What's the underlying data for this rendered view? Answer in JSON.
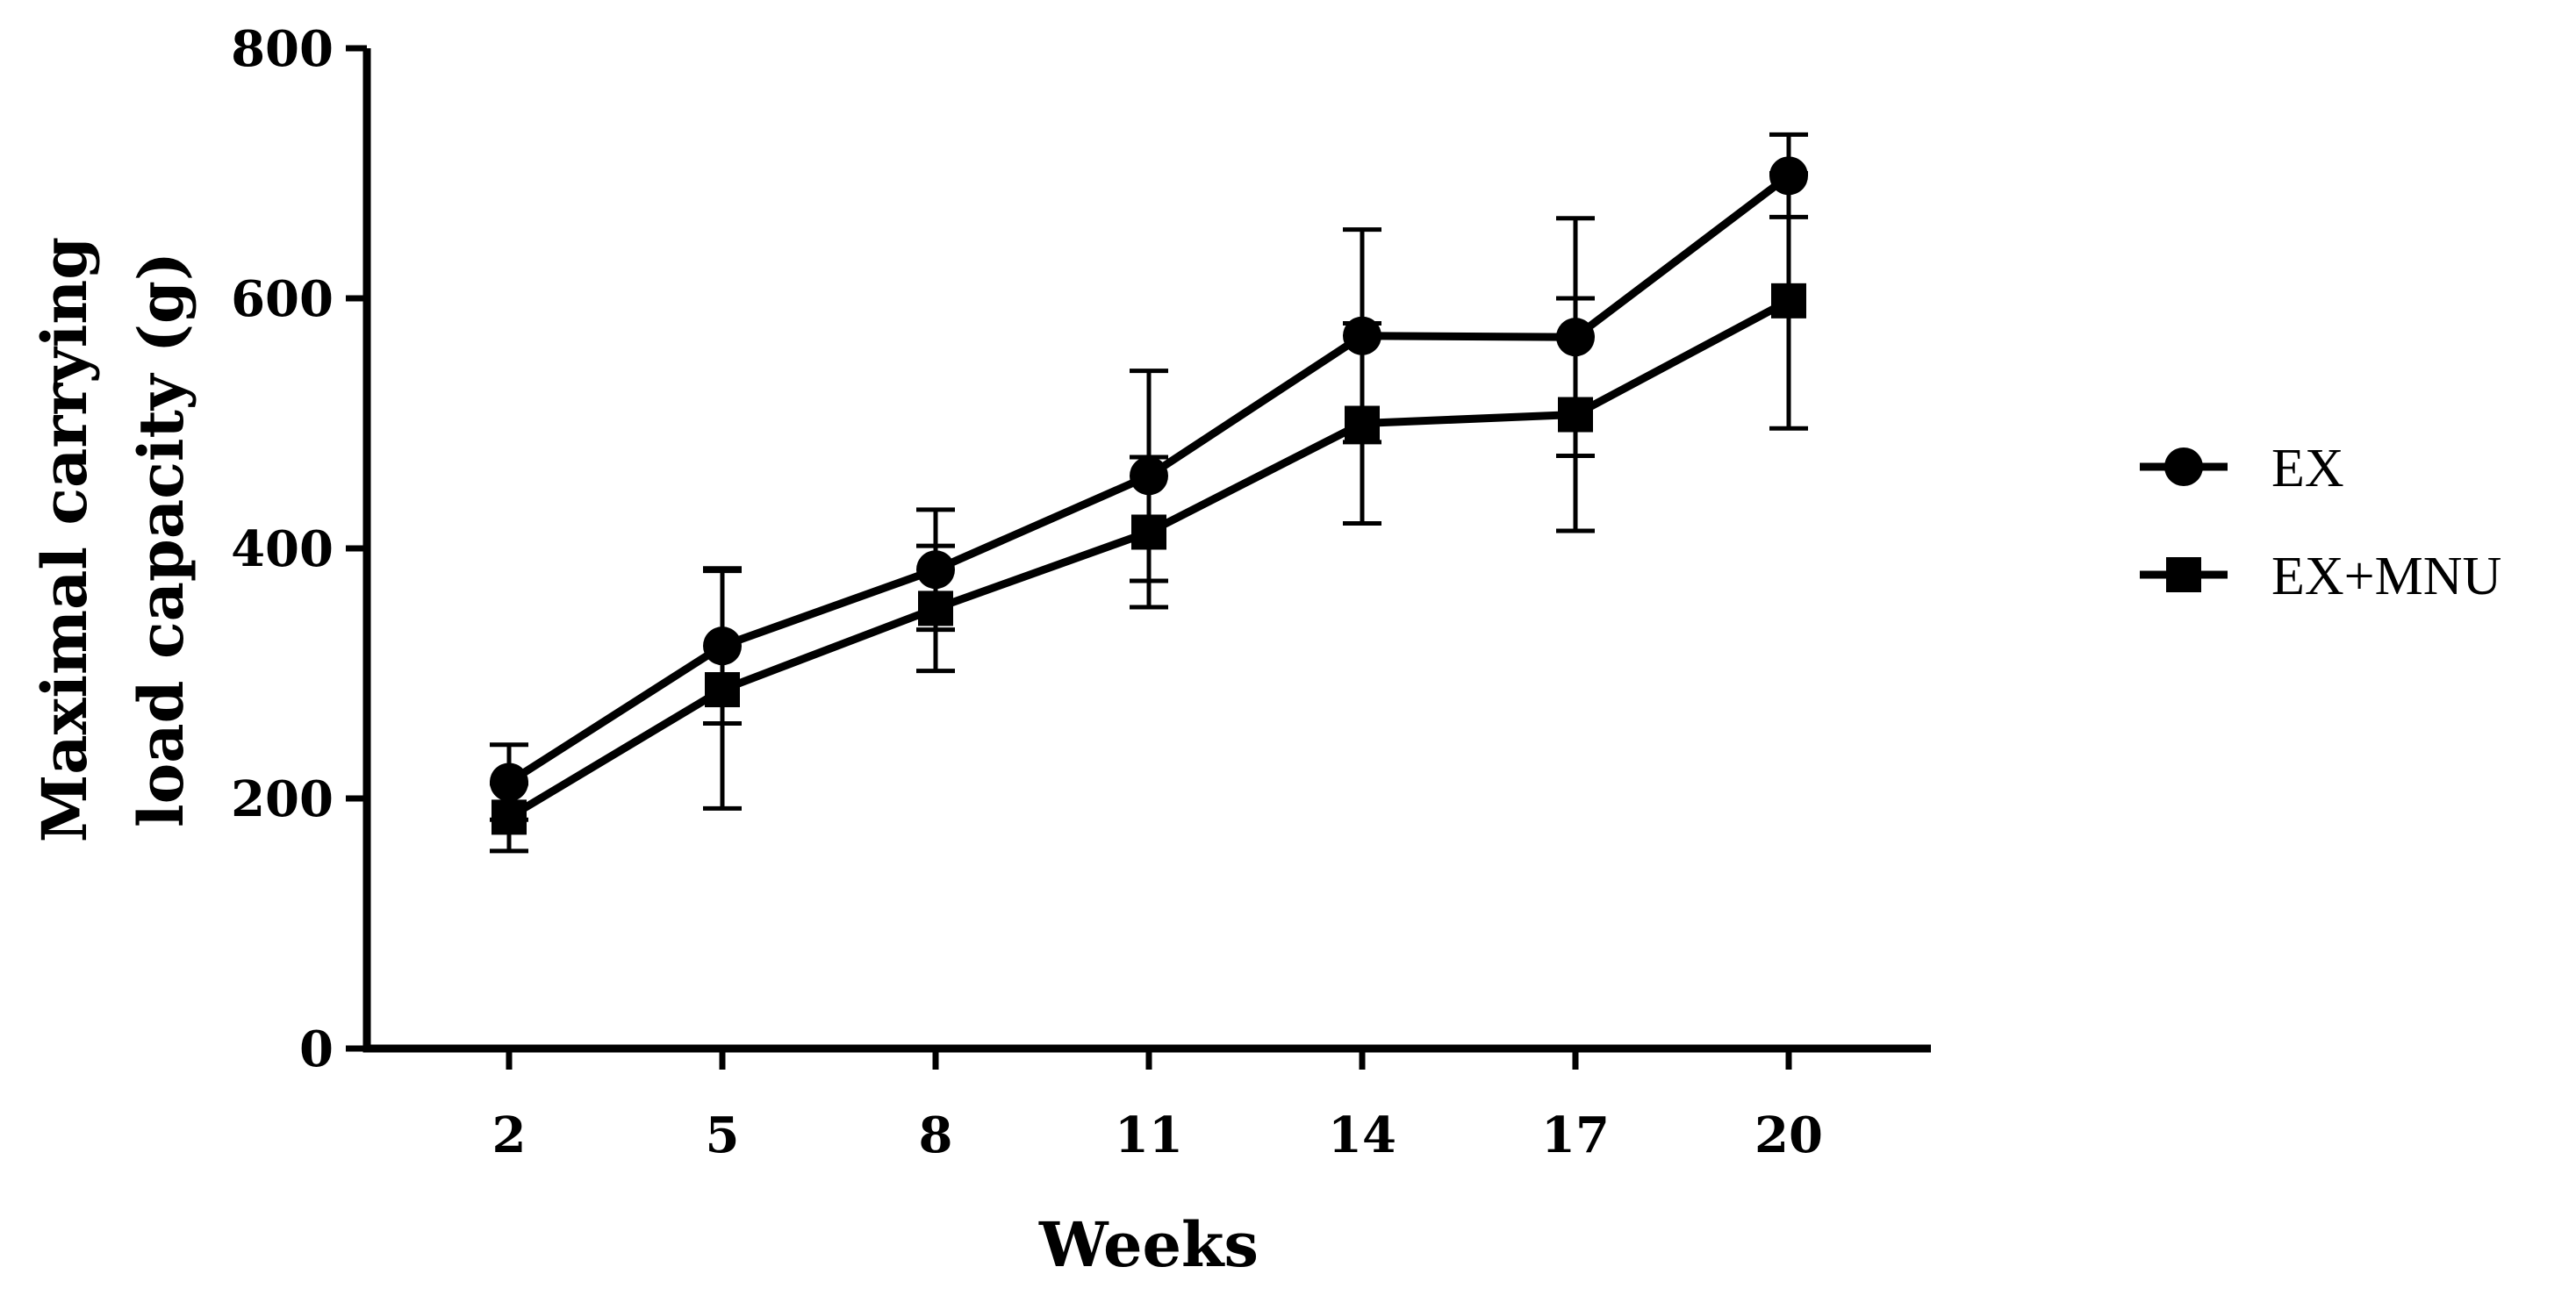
{
  "chart_data": {
    "type": "line",
    "title": "",
    "xlabel": "Weeks",
    "ylabel_lines": [
      "Maximal carrying",
      "load capacity (g)"
    ],
    "x": [
      2,
      5,
      8,
      11,
      14,
      17,
      20
    ],
    "x_tick_labels": [
      "2",
      "5",
      "8",
      "11",
      "14",
      "17",
      "20"
    ],
    "xlim": [
      0,
      22
    ],
    "ylim": [
      0,
      800
    ],
    "y_ticks": [
      0,
      200,
      400,
      600,
      800
    ],
    "y_tick_labels": [
      "0",
      "200",
      "400",
      "600",
      "800"
    ],
    "grid": false,
    "legend_position": "right",
    "series": [
      {
        "name": "EX",
        "marker": "circle",
        "values": [
          213,
          322,
          383,
          458,
          570,
          569,
          698
        ],
        "error": [
          30,
          62,
          48,
          84,
          85,
          95,
          33
        ]
      },
      {
        "name": "EX+MNU",
        "marker": "square",
        "values": [
          185,
          287,
          352,
          413,
          500,
          507,
          598
        ],
        "error": [
          27,
          95,
          50,
          60,
          80,
          93,
          102
        ]
      }
    ]
  }
}
